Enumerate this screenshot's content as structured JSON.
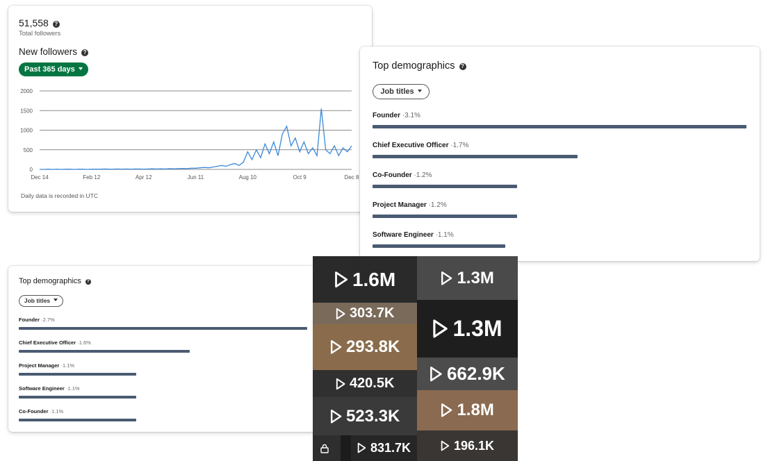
{
  "followers": {
    "total": "51,558",
    "total_label": "Total followers",
    "filter": "Past 365 days"
  },
  "demographic_filters": [
    "Job titles",
    "Job titles"
  ],
  "chart_data": [
    {
      "type": "line",
      "title": "New followers",
      "note": "Daily data is recorded in UTC",
      "categories": [
        "Dec 14",
        null,
        null,
        null,
        null,
        null,
        null,
        null,
        null,
        null,
        null,
        null,
        "Feb 12",
        null,
        null,
        null,
        null,
        null,
        null,
        null,
        null,
        null,
        null,
        null,
        "Apr 12",
        null,
        null,
        null,
        null,
        null,
        null,
        null,
        null,
        null,
        null,
        null,
        "Jun 11",
        null,
        null,
        null,
        null,
        null,
        null,
        null,
        null,
        null,
        null,
        null,
        "Aug 10",
        null,
        null,
        null,
        null,
        null,
        null,
        null,
        null,
        null,
        null,
        null,
        "Oct 9",
        null,
        null,
        null,
        null,
        null,
        null,
        null,
        null,
        null,
        null,
        null,
        "Dec 8"
      ],
      "values": [
        0,
        0,
        5,
        0,
        5,
        0,
        5,
        5,
        0,
        5,
        5,
        0,
        5,
        5,
        5,
        10,
        5,
        5,
        10,
        5,
        10,
        5,
        10,
        10,
        5,
        10,
        15,
        10,
        15,
        10,
        20,
        15,
        20,
        25,
        20,
        30,
        30,
        40,
        50,
        40,
        60,
        80,
        100,
        80,
        120,
        150,
        100,
        180,
        450,
        250,
        500,
        300,
        650,
        400,
        700,
        350,
        900,
        1100,
        600,
        800,
        450,
        700,
        400,
        550,
        350,
        1550,
        500,
        400,
        600,
        350,
        550,
        450,
        600
      ],
      "color": "#3b88d8",
      "ylim": [
        0,
        2000
      ],
      "yticks": [
        0,
        500,
        1000,
        1500,
        2000
      ],
      "grid": true
    },
    {
      "type": "bar",
      "title": "Top demographics",
      "categories": [
        "Founder",
        "Chief Executive Officer",
        "Co-Founder",
        "Project Manager",
        "Software Engineer"
      ],
      "values": [
        3.1,
        1.7,
        1.2,
        1.2,
        1.1
      ],
      "value_labels": [
        "3.1%",
        "1.7%",
        "1.2%",
        "1.2%",
        "1.1%"
      ],
      "color": "#4a5b72"
    },
    {
      "type": "bar",
      "title": "Top demographics",
      "categories": [
        "Founder",
        "Chief Executive Officer",
        "Project Manager",
        "Software Engineer",
        "Co-Founder"
      ],
      "values": [
        2.7,
        1.6,
        1.1,
        1.1,
        1.1
      ],
      "value_labels": [
        "2.7%",
        "1.6%",
        "1.1%",
        "1.1%",
        "1.1%"
      ],
      "color": "#4a5b72"
    }
  ],
  "videos": {
    "views": [
      "1.6M",
      "303.7K",
      "293.8K",
      "420.5K",
      "523.3K",
      "831.7K",
      "1.3M",
      "1.3M",
      "662.9K",
      "1.8M",
      "196.1K"
    ]
  }
}
